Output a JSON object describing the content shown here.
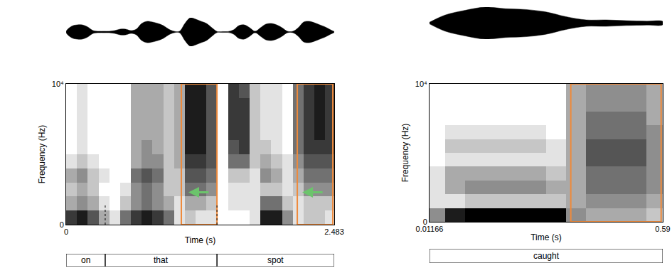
{
  "chart_data": [
    {
      "type": "spectrogram",
      "x_label": "Time (s)",
      "y_label": "Frequency (Hz)",
      "xlim": [
        0,
        2.483
      ],
      "xticks": [
        0,
        2.483
      ],
      "ylim": [
        0,
        10000
      ],
      "yticks": [
        0,
        {
          "value": 10000,
          "label": "10⁴"
        }
      ],
      "time_edges": [
        0,
        0.1,
        0.2,
        0.3,
        0.4,
        0.5,
        0.6,
        0.7,
        0.8,
        0.9,
        1.0,
        1.1,
        1.2,
        1.3,
        1.4,
        1.5,
        1.6,
        1.7,
        1.8,
        1.9,
        2.0,
        2.1,
        2.2,
        2.3,
        2.4,
        2.483
      ],
      "frequency_edges": [
        0,
        1000,
        2000,
        3000,
        4000,
        5000,
        6000,
        7000,
        8000,
        9000,
        10000
      ],
      "zlim": [
        0,
        9
      ],
      "cells": [
        [
          7,
          8,
          6,
          3,
          1,
          5,
          7,
          8,
          7,
          5,
          1,
          2,
          1,
          1,
          0,
          0,
          0,
          1,
          8,
          8,
          4,
          1,
          2,
          2,
          1
        ],
        [
          3,
          4,
          3,
          1,
          0,
          2,
          4,
          5,
          4,
          3,
          1,
          3,
          3,
          2,
          0,
          1,
          1,
          1,
          5,
          5,
          2,
          1,
          2,
          2,
          2
        ],
        [
          2,
          3,
          2,
          0,
          0,
          1,
          4,
          5,
          4,
          2,
          2,
          5,
          5,
          4,
          0,
          1,
          1,
          1,
          2,
          2,
          1,
          2,
          4,
          4,
          4
        ],
        [
          3,
          4,
          2,
          1,
          0,
          0,
          5,
          6,
          5,
          2,
          2,
          6,
          6,
          5,
          0,
          2,
          2,
          1,
          4,
          3,
          1,
          3,
          5,
          5,
          5
        ],
        [
          1,
          2,
          1,
          0,
          0,
          0,
          3,
          4,
          4,
          2,
          3,
          7,
          7,
          6,
          0,
          5,
          5,
          2,
          3,
          2,
          1,
          4,
          6,
          6,
          6
        ],
        [
          0,
          1,
          0,
          0,
          0,
          0,
          3,
          4,
          3,
          2,
          3,
          8,
          8,
          6,
          0,
          6,
          7,
          2,
          2,
          1,
          0,
          5,
          7,
          7,
          7
        ],
        [
          0,
          1,
          0,
          0,
          0,
          0,
          3,
          3,
          3,
          2,
          3,
          8,
          8,
          6,
          0,
          7,
          7,
          2,
          1,
          1,
          0,
          5,
          7,
          8,
          7
        ],
        [
          0,
          1,
          0,
          0,
          0,
          0,
          3,
          3,
          3,
          2,
          3,
          8,
          8,
          6,
          0,
          7,
          7,
          2,
          1,
          1,
          0,
          5,
          7,
          8,
          7
        ],
        [
          0,
          1,
          0,
          0,
          0,
          0,
          3,
          3,
          3,
          2,
          3,
          8,
          8,
          6,
          0,
          7,
          7,
          2,
          1,
          1,
          0,
          5,
          7,
          8,
          7
        ],
        [
          0,
          1,
          0,
          0,
          0,
          0,
          3,
          3,
          3,
          2,
          3,
          8,
          8,
          6,
          0,
          7,
          6,
          2,
          1,
          1,
          0,
          5,
          7,
          8,
          7
        ]
      ],
      "waveform": {
        "time": [
          0,
          0.05,
          0.1,
          0.15,
          0.2,
          0.25,
          0.3,
          0.35,
          0.4,
          0.45,
          0.5,
          0.55,
          0.6,
          0.65,
          0.7,
          0.75,
          0.8,
          0.85,
          0.9,
          0.95,
          1.0,
          1.05,
          1.1,
          1.15,
          1.2,
          1.25,
          1.3,
          1.35,
          1.4,
          1.45,
          1.5,
          1.55,
          1.6,
          1.65,
          1.7,
          1.75,
          1.8,
          1.85,
          1.9,
          1.95,
          2.0,
          2.05,
          2.1,
          2.15,
          2.2,
          2.25,
          2.3,
          2.35,
          2.4,
          2.45,
          2.483
        ],
        "amplitude": [
          0,
          0.4,
          0.5,
          0.5,
          0.35,
          0.1,
          0.05,
          0.05,
          0.05,
          0.1,
          0.2,
          0.2,
          0.1,
          0.2,
          0.6,
          0.75,
          0.7,
          0.6,
          0.45,
          0.2,
          0.05,
          0.05,
          0.6,
          1.0,
          0.9,
          0.75,
          0.6,
          0.3,
          0.03,
          0.03,
          0.03,
          0.15,
          0.45,
          0.5,
          0.3,
          0.05,
          0.3,
          0.55,
          0.6,
          0.5,
          0.3,
          0.05,
          0.05,
          0.3,
          0.7,
          0.75,
          0.65,
          0.5,
          0.35,
          0.15,
          0.02
        ],
        "ylim": [
          -1,
          1
        ],
        "color": "#000000"
      },
      "highlights": [
        {
          "start": 1.067,
          "end": 1.397,
          "color": "#ee8a3c"
        },
        {
          "start": 2.141,
          "end": 2.47,
          "color": "#ee8a3c"
        }
      ],
      "arrows": [
        {
          "from": 1.33,
          "to": 1.133,
          "frequency": 2300,
          "color": "#6cc46c"
        },
        {
          "from": 2.385,
          "to": 2.187,
          "frequency": 2300,
          "color": "#6cc46c"
        }
      ],
      "tiers": [
        {
          "label": "on",
          "start": 0,
          "end": 0.362
        },
        {
          "label": "that",
          "start": 0.362,
          "end": 1.397
        },
        {
          "label": "spot",
          "start": 1.397,
          "end": 2.483
        }
      ]
    },
    {
      "type": "spectrogram",
      "x_label": "Time (s)",
      "y_label": "Frequency (Hz)",
      "xlim": [
        0.01166,
        0.59
      ],
      "xticks": [
        0.01166,
        0.59
      ],
      "ylim": [
        0,
        10000
      ],
      "yticks": [
        0,
        {
          "value": 10000,
          "label": "10⁴"
        }
      ],
      "time_edges": [
        0.01166,
        0.05,
        0.1,
        0.15,
        0.2,
        0.25,
        0.3,
        0.35,
        0.4,
        0.45,
        0.5,
        0.55,
        0.59
      ],
      "frequency_edges": [
        0,
        1000,
        2000,
        3000,
        4000,
        5000,
        6000,
        7000,
        8000,
        9000,
        10000
      ],
      "zlim": [
        0,
        9
      ],
      "cells": [
        [
          4,
          8,
          9,
          9,
          9,
          9,
          9,
          4,
          3,
          3,
          3,
          2
        ],
        [
          1,
          1,
          2,
          2,
          2,
          2,
          2,
          3,
          4,
          4,
          4,
          3
        ],
        [
          1,
          3,
          4,
          4,
          4,
          4,
          3,
          3,
          5,
          5,
          5,
          4
        ],
        [
          1,
          3,
          3,
          3,
          3,
          3,
          2,
          3,
          5,
          5,
          5,
          4
        ],
        [
          0,
          1,
          1,
          1,
          1,
          1,
          1,
          3,
          6,
          6,
          6,
          4
        ],
        [
          0,
          2,
          2,
          2,
          2,
          2,
          1,
          3,
          6,
          6,
          6,
          4
        ],
        [
          0,
          1,
          1,
          1,
          1,
          1,
          0,
          3,
          5,
          5,
          5,
          4
        ],
        [
          0,
          0,
          0,
          0,
          0,
          0,
          0,
          3,
          5,
          5,
          5,
          3
        ],
        [
          0,
          0,
          0,
          0,
          0,
          0,
          0,
          3,
          4,
          4,
          4,
          3
        ],
        [
          0,
          0,
          0,
          0,
          0,
          0,
          0,
          3,
          4,
          4,
          4,
          3
        ]
      ],
      "waveform": {
        "time": [
          0.01166,
          0.05,
          0.1,
          0.15,
          0.2,
          0.25,
          0.3,
          0.35,
          0.4,
          0.45,
          0.5,
          0.55,
          0.59
        ],
        "amplitude": [
          0.05,
          0.5,
          0.8,
          1.0,
          0.9,
          0.85,
          0.7,
          0.4,
          0.2,
          0.2,
          0.15,
          0.12,
          0.1
        ],
        "ylim": [
          -1,
          1
        ],
        "color": "#000000"
      },
      "highlights": [
        {
          "start": 0.362,
          "end": 0.586,
          "color": "#ee8a3c"
        }
      ],
      "tiers": [
        {
          "label": "caught",
          "start": 0.01166,
          "end": 0.59
        }
      ]
    }
  ]
}
